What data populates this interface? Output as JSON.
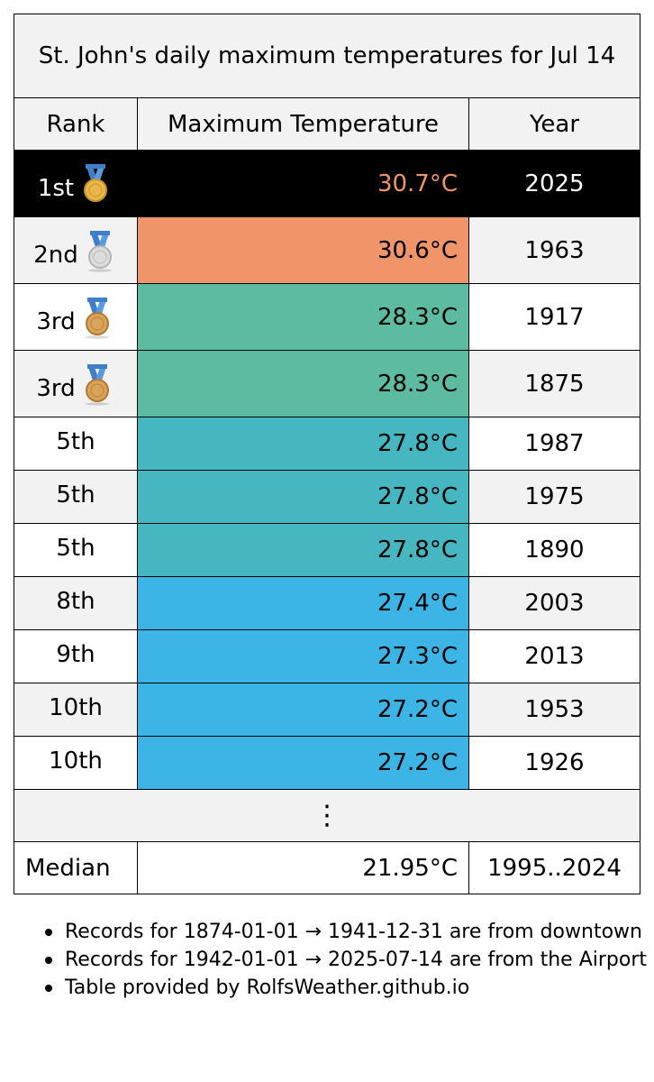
{
  "title": "St. John's daily maximum temperatures for Jul 14",
  "headers": {
    "rank": "Rank",
    "temp": "Maximum Temperature",
    "year": "Year"
  },
  "rows": [
    {
      "rank": "1st",
      "medal": "gold-medal-icon",
      "temp": "30.7°C",
      "year": "2025",
      "temp_color": "#000000"
    },
    {
      "rank": "2nd",
      "medal": "silver-medal-icon",
      "temp": "30.6°C",
      "year": "1963",
      "temp_color": "#f0946a"
    },
    {
      "rank": "3rd",
      "medal": "bronze-medal-icon",
      "temp": "28.3°C",
      "year": "1917",
      "temp_color": "#5cbba1"
    },
    {
      "rank": "3rd",
      "medal": "bronze-medal-icon",
      "temp": "28.3°C",
      "year": "1875",
      "temp_color": "#5cbba1"
    },
    {
      "rank": "5th",
      "medal": "",
      "temp": "27.8°C",
      "year": "1987",
      "temp_color": "#46b6c0"
    },
    {
      "rank": "5th",
      "medal": "",
      "temp": "27.8°C",
      "year": "1975",
      "temp_color": "#46b6c0"
    },
    {
      "rank": "5th",
      "medal": "",
      "temp": "27.8°C",
      "year": "1890",
      "temp_color": "#46b6c0"
    },
    {
      "rank": "8th",
      "medal": "",
      "temp": "27.4°C",
      "year": "2003",
      "temp_color": "#3cb4e5"
    },
    {
      "rank": "9th",
      "medal": "",
      "temp": "27.3°C",
      "year": "2013",
      "temp_color": "#3cb4e5"
    },
    {
      "rank": "10th",
      "medal": "",
      "temp": "27.2°C",
      "year": "1953",
      "temp_color": "#3cb4e5"
    },
    {
      "rank": "10th",
      "medal": "",
      "temp": "27.2°C",
      "year": "1926",
      "temp_color": "#3cb4e5"
    }
  ],
  "ellipsis": "⋮",
  "median": {
    "label": "Median",
    "temp": "21.95°C",
    "period": "1995..2024"
  },
  "notes": [
    "Records for 1874-01-01 → 1941-12-31 are from downtown",
    "Records for 1942-01-01 → 2025-07-14 are from the Airport",
    "Table provided by RolfsWeather.github.io"
  ],
  "colors": {
    "header_bg": "#f2f2f2",
    "first_row_bg": "#000000",
    "first_row_temp_text": "#f0946a"
  }
}
